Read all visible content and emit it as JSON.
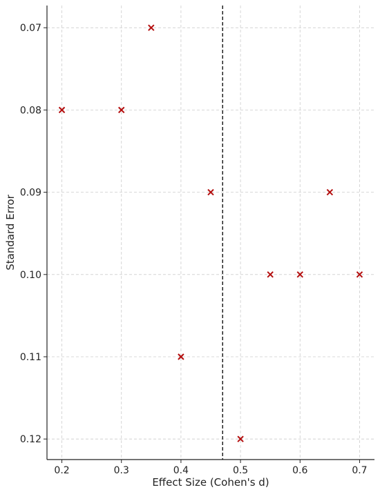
{
  "chart_data": {
    "type": "scatter",
    "title": "",
    "xlabel": "Effect Size (Cohen's d)",
    "ylabel": "Standard Error",
    "xlim": [
      0.175,
      0.725
    ],
    "ylim": [
      0.0673,
      0.1225
    ],
    "y_inverted": true,
    "grid": true,
    "x_ticks": [
      "0.2",
      "0.3",
      "0.4",
      "0.5",
      "0.6",
      "0.7"
    ],
    "x_tick_values": [
      0.2,
      0.3,
      0.4,
      0.5,
      0.6,
      0.7
    ],
    "y_ticks": [
      "0.07",
      "0.08",
      "0.09",
      "0.10",
      "0.11",
      "0.12"
    ],
    "y_tick_values": [
      0.07,
      0.08,
      0.09,
      0.1,
      0.11,
      0.12
    ],
    "reference_line_x": 0.47,
    "reference_line_style": "dashed",
    "marker": "x",
    "marker_color": "#b40e0e",
    "points": [
      {
        "x": 0.2,
        "y": 0.08
      },
      {
        "x": 0.3,
        "y": 0.08
      },
      {
        "x": 0.35,
        "y": 0.07
      },
      {
        "x": 0.4,
        "y": 0.11
      },
      {
        "x": 0.45,
        "y": 0.09
      },
      {
        "x": 0.5,
        "y": 0.12
      },
      {
        "x": 0.55,
        "y": 0.1
      },
      {
        "x": 0.6,
        "y": 0.1
      },
      {
        "x": 0.65,
        "y": 0.09
      },
      {
        "x": 0.7,
        "y": 0.1
      }
    ]
  }
}
